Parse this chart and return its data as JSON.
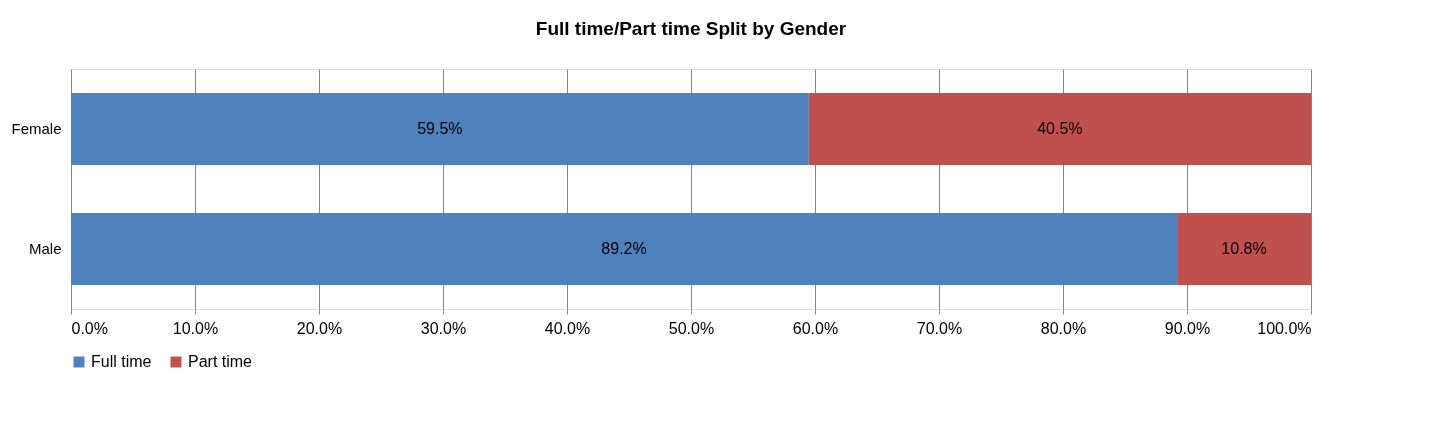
{
  "chart_data": {
    "type": "bar",
    "orientation": "horizontal",
    "stacked": true,
    "title": "Full time/Part time Split by Gender",
    "categories": [
      "Female",
      "Male"
    ],
    "series": [
      {
        "name": "Full time",
        "color": "#4f81bd",
        "values": [
          59.5,
          89.2
        ],
        "value_labels": [
          "59.5%",
          "89.2%"
        ]
      },
      {
        "name": "Part time",
        "color": "#c0504d",
        "values": [
          40.5,
          10.8
        ],
        "value_labels": [
          "40.5%",
          "10.8%"
        ]
      }
    ],
    "xlim": [
      0,
      100
    ],
    "xticks": [
      {
        "value": 0,
        "label": "0.0%"
      },
      {
        "value": 10,
        "label": "10.0%"
      },
      {
        "value": 20,
        "label": "20.0%"
      },
      {
        "value": 30,
        "label": "30.0%"
      },
      {
        "value": 40,
        "label": "40.0%"
      },
      {
        "value": 50,
        "label": "50.0%"
      },
      {
        "value": 60,
        "label": "60.0%"
      },
      {
        "value": 70,
        "label": "70.0%"
      },
      {
        "value": 80,
        "label": "80.0%"
      },
      {
        "value": 90,
        "label": "90.0%"
      },
      {
        "value": 100,
        "label": "100.0%"
      }
    ],
    "grid": "x",
    "legend": "bottom"
  }
}
